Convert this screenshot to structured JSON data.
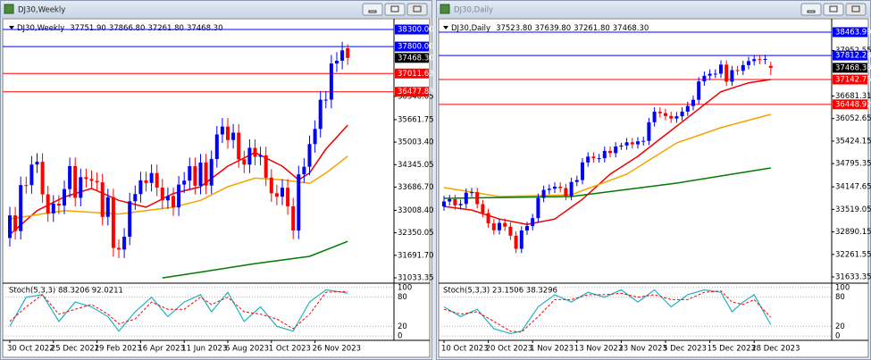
{
  "chart_data": [
    {
      "type": "candlestick",
      "window_title": "DJ30,Weekly",
      "title": "DJ30,Weekly",
      "header_values": [
        {
          "value": 37751.9,
          "label": "37751.90"
        },
        {
          "value": 37866.8,
          "label": "37866.80"
        },
        {
          "value": 37261.8,
          "label": "37261.80"
        },
        {
          "value": 37468.3,
          "label": "37468.30"
        }
      ],
      "categories": [
        "30 Oct 2022",
        null,
        null,
        null,
        null,
        null,
        null,
        null,
        "25 Dec 2022",
        null,
        null,
        null,
        null,
        null,
        null,
        null,
        "19 Feb 2023",
        null,
        null,
        null,
        null,
        null,
        null,
        null,
        "16 Apr 2023",
        null,
        null,
        null,
        null,
        null,
        null,
        null,
        "11 Jun 2023",
        null,
        null,
        null,
        null,
        null,
        null,
        null,
        "6 Aug 2023",
        null,
        null,
        null,
        null,
        null,
        null,
        null,
        "1 Oct 2023",
        null,
        null,
        null,
        null,
        null,
        null,
        null,
        "26 Nov 2023",
        null,
        null,
        null,
        null,
        null,
        null
      ],
      "candles": {
        "up_color": "#0000ff",
        "down_color": "#ff0000",
        "open": [
          32200,
          32861,
          32403,
          33747,
          33746,
          34347,
          34430,
          33476,
          32920,
          33203,
          33147,
          33630,
          34302,
          33375,
          33978,
          33926,
          33869,
          33827,
          32817,
          33391,
          31909,
          31862,
          32238,
          33274,
          33485,
          33886,
          33809,
          34098,
          33674,
          33300,
          33427,
          33093,
          33762,
          33877,
          34299,
          33727,
          34407,
          33734,
          34509,
          35228,
          35459,
          35065,
          35281,
          34500,
          34346,
          34837,
          34576,
          34618,
          33964,
          33507,
          33407,
          33670,
          33127,
          32418,
          34061,
          34283,
          34947,
          35390,
          36245,
          36247,
          37305,
          37385,
          37751.9
        ],
        "high": [
          33111,
          33111,
          33997,
          33996,
          34597,
          34680,
          34680,
          33726,
          33453,
          33453,
          33880,
          34552,
          34552,
          34228,
          34228,
          34176,
          34119,
          34077,
          33641,
          33641,
          32159,
          32488,
          33524,
          33735,
          34136,
          34136,
          34348,
          34348,
          33924,
          33677,
          33677,
          34012,
          34127,
          34549,
          34549,
          34657,
          34657,
          34759,
          35478,
          35709,
          35709,
          35531,
          35531,
          34750,
          35087,
          35087,
          34868,
          34868,
          34214,
          33757,
          33920,
          33920,
          33377,
          34311,
          34533,
          35197,
          35640,
          36495,
          36497,
          37555,
          37635,
          37939,
          37866.8
        ],
        "low": [
          31950,
          32153,
          32153,
          33496,
          33496,
          34097,
          33226,
          32670,
          32670,
          32897,
          32897,
          33380,
          33125,
          33125,
          33676,
          33619,
          33577,
          32567,
          32567,
          31659,
          31612,
          31612,
          31988,
          33024,
          33235,
          33559,
          33559,
          33424,
          33050,
          33050,
          32843,
          32843,
          33512,
          33627,
          33477,
          33477,
          33484,
          33484,
          34259,
          34978,
          34815,
          34815,
          34250,
          34096,
          34096,
          34326,
          34326,
          33714,
          33257,
          33157,
          33157,
          32877,
          32168,
          32168,
          33811,
          34033,
          34697,
          35140,
          35995,
          35997,
          37055,
          37135,
          37261.8
        ],
        "close": [
          32861,
          32403,
          33747,
          33746,
          34347,
          34430,
          33476,
          32920,
          33203,
          33147,
          33630,
          34302,
          33375,
          33978,
          33926,
          33869,
          33827,
          32817,
          33391,
          31909,
          31862,
          32238,
          33274,
          33485,
          33886,
          33809,
          34098,
          33674,
          33300,
          33427,
          33093,
          33762,
          33877,
          34299,
          33727,
          34407,
          33734,
          34509,
          35228,
          35459,
          35065,
          35281,
          34500,
          34346,
          34837,
          34576,
          34618,
          33964,
          33507,
          33407,
          33670,
          33127,
          32418,
          34061,
          34283,
          34947,
          35390,
          36245,
          36247,
          37305,
          37385,
          37689,
          37468.3
        ]
      },
      "ma": [
        {
          "color": "#ee0000",
          "x": [
            0,
            5,
            10,
            15,
            20,
            25,
            30,
            35,
            40,
            45,
            50,
            53,
            55,
            58,
            62
          ],
          "values": [
            32300,
            33000,
            33400,
            33650,
            33300,
            33100,
            33500,
            33700,
            34300,
            34700,
            34300,
            33900,
            34100,
            34800,
            35500
          ]
        },
        {
          "color": "#f5a300",
          "x": [
            0,
            10,
            20,
            30,
            35,
            40,
            45,
            50,
            55,
            58,
            62
          ],
          "values": [
            32760,
            33000,
            32900,
            33100,
            33300,
            33700,
            33950,
            33900,
            33800,
            34100,
            34590
          ]
        },
        {
          "color": "#007a00",
          "x": [
            28,
            35,
            45,
            55,
            62
          ],
          "values": [
            31030,
            31200,
            31450,
            31660,
            32100
          ]
        }
      ],
      "levels": [
        {
          "value": 38300,
          "label": "38300.00",
          "color": "#0000ff"
        },
        {
          "value": 37800,
          "label": "37800.00",
          "color": "#0000ff"
        },
        {
          "value": 37011.63,
          "label": "37011.63",
          "color": "#ff0000"
        },
        {
          "value": 36477.83,
          "label": "36477.83",
          "color": "#ff0000"
        }
      ],
      "last_price": {
        "value": 37468.3,
        "label": "37468.30"
      },
      "ylim": [
        30903,
        38535
      ],
      "yticks": [
        36340.05,
        35661.75,
        {
          "value": 35003.4,
          "label": "35003.40"
        },
        34345.05,
        {
          "value": 33686.7,
          "label": "33686.70"
        },
        {
          "value": 33008.4,
          "label": "33008.40"
        },
        32350.05,
        {
          "value": 31691.7,
          "label": "31691.70"
        },
        31033.35
      ],
      "stoch": {
        "label": "Stoch(5,3,3) 88.3206 92.0211",
        "ylim": [
          -9,
          107
        ],
        "yticks": [
          100,
          80,
          20,
          0
        ],
        "main": {
          "color": "#20b2c0",
          "x": [
            0,
            3,
            6,
            9,
            12,
            15,
            18,
            20,
            23,
            26,
            29,
            32,
            35,
            37,
            40,
            43,
            46,
            49,
            52,
            55,
            58,
            62
          ],
          "values": [
            20,
            80,
            85,
            30,
            70,
            60,
            40,
            10,
            50,
            80,
            40,
            70,
            85,
            50,
            90,
            30,
            60,
            20,
            10,
            70,
            95,
            88.3206
          ]
        },
        "signal": {
          "color": "#ff0000",
          "x": [
            0,
            3,
            6,
            9,
            12,
            15,
            18,
            20,
            23,
            26,
            29,
            32,
            35,
            37,
            40,
            43,
            46,
            49,
            52,
            55,
            58,
            62
          ],
          "values": [
            30,
            60,
            85,
            45,
            55,
            65,
            45,
            25,
            35,
            70,
            55,
            55,
            80,
            65,
            80,
            50,
            45,
            35,
            15,
            45,
            90,
            92.0211
          ]
        }
      }
    },
    {
      "type": "candlestick",
      "window_title": "DJ30,Daily",
      "title": "DJ30,Daily",
      "header_values": [
        {
          "value": 37523.8,
          "label": "37523.80"
        },
        {
          "value": 37639.8,
          "label": "37639.80"
        },
        {
          "value": 37261.8,
          "label": "37261.80"
        },
        {
          "value": 37468.3,
          "label": "37468.30"
        }
      ],
      "categories": [
        "10 Oct 2023",
        null,
        null,
        null,
        null,
        null,
        null,
        null,
        "20 Oct 2023",
        null,
        null,
        null,
        null,
        null,
        null,
        null,
        "1 Nov 2023",
        null,
        null,
        null,
        null,
        null,
        null,
        null,
        "13 Nov 2023",
        null,
        null,
        null,
        null,
        null,
        null,
        null,
        "23 Nov 2023",
        null,
        null,
        null,
        null,
        null,
        null,
        null,
        "5 Dec 2023",
        null,
        null,
        null,
        null,
        null,
        null,
        null,
        "15 Dec 2023",
        null,
        null,
        null,
        null,
        null,
        null,
        null,
        "28 Dec 2023",
        null,
        null,
        null
      ],
      "candles": {
        "up_color": "#0000ff",
        "down_color": "#ff0000",
        "open": [
          33600,
          33739,
          33804,
          33631,
          33670,
          33985,
          33998,
          33665,
          33415,
          33127,
          32936,
          33141,
          33036,
          32785,
          32418,
          32929,
          33053,
          33275,
          33839,
          34061,
          34096,
          34153,
          34112,
          33892,
          34283,
          34337,
          34828,
          34991,
          34946,
          34947,
          35151,
          35088,
          35273,
          35300,
          35390,
          35333,
          35416,
          35430,
          35950,
          36245,
          36204,
          36125,
          36054,
          36117,
          36247,
          36404,
          36577,
          37090,
          37248,
          37305,
          37306,
          37558,
          37082,
          37404,
          37385,
          37545,
          37656,
          37710,
          37690,
          37523.8
        ],
        "high": [
          33900,
          33924,
          33924,
          33790,
          34105,
          34118,
          34118,
          33785,
          33535,
          33247,
          33261,
          33261,
          33156,
          32905,
          33049,
          33173,
          33395,
          33959,
          34181,
          34216,
          34273,
          34273,
          34232,
          34403,
          34457,
          34948,
          35111,
          35111,
          35067,
          35271,
          35271,
          35393,
          35380,
          35510,
          35510,
          35536,
          35550,
          36070,
          36365,
          36365,
          36324,
          36245,
          36237,
          36367,
          36524,
          36697,
          37210,
          37368,
          37425,
          37426,
          37678,
          37678,
          37524,
          37524,
          37665,
          37776,
          37830,
          37830,
          37835,
          37639.8
        ],
        "low": [
          33480,
          33619,
          33511,
          33511,
          33550,
          33865,
          33545,
          33295,
          33007,
          32816,
          32816,
          32916,
          32665,
          32298,
          32298,
          32809,
          32933,
          33155,
          33719,
          33941,
          33976,
          33992,
          33772,
          33772,
          34163,
          34217,
          34708,
          34826,
          34826,
          34827,
          34968,
          34968,
          35180,
          35180,
          35213,
          35213,
          35296,
          35310,
          35830,
          36084,
          36005,
          35934,
          35934,
          35997,
          36127,
          36284,
          36457,
          36970,
          37128,
          37185,
          37186,
          36962,
          36962,
          37265,
          37265,
          37425,
          37536,
          37570,
          37570,
          37261.8
        ],
        "close": [
          33739,
          33804,
          33631,
          33670,
          33985,
          33998,
          33665,
          33415,
          33127,
          32936,
          33141,
          33036,
          32785,
          32418,
          32929,
          33053,
          33275,
          33839,
          34061,
          34096,
          34153,
          34112,
          33892,
          34283,
          34337,
          34828,
          34991,
          34946,
          34947,
          35151,
          35088,
          35273,
          35300,
          35390,
          35333,
          35416,
          35430,
          35950,
          36245,
          36204,
          36125,
          36054,
          36117,
          36247,
          36404,
          36577,
          37090,
          37248,
          37305,
          37306,
          37558,
          37082,
          37404,
          37385,
          37545,
          37656,
          37710,
          37690,
          37715,
          37468.3
        ]
      },
      "ma": [
        {
          "color": "#ee0000",
          "x": [
            0,
            5,
            10,
            15,
            20,
            25,
            30,
            35,
            40,
            45,
            50,
            55,
            59
          ],
          "values": [
            33600,
            33500,
            33250,
            33100,
            33250,
            33800,
            34500,
            35000,
            35600,
            36200,
            36800,
            37050,
            37142.75
          ]
        },
        {
          "color": "#f5a300",
          "x": [
            0,
            10,
            23,
            33,
            42,
            50,
            59
          ],
          "values": [
            34126,
            33877,
            33926,
            34500,
            35372,
            35800,
            36170
          ]
        },
        {
          "color": "#007a00",
          "x": [
            0,
            23,
            42,
            59
          ],
          "values": [
            33827,
            33877,
            34250,
            34674
          ]
        }
      ],
      "levels": [
        {
          "value": 38463.99,
          "label": "38463.99",
          "color": "#0000ff"
        },
        {
          "value": 37812.28,
          "label": "37812.28",
          "color": "#0000ff"
        },
        {
          "value": 37142.75,
          "label": "37142.75",
          "color": "#ff0000"
        },
        {
          "value": 36448.92,
          "label": "36448.92",
          "color": "#ff0000"
        }
      ],
      "last_price": {
        "value": 37468.3,
        "label": "37468.30"
      },
      "ylim": [
        31484,
        38763
      ],
      "yticks": [
        37952.55,
        36681.31,
        36052.65,
        35424.15,
        34795.35,
        34147.65,
        33519.05,
        32890.15,
        32261.55,
        31633.35
      ],
      "stoch": {
        "label": "Stoch(5,3,3) 23.1506 38.3296",
        "ylim": [
          -9,
          107
        ],
        "yticks": [
          100,
          80,
          20,
          0
        ],
        "main": {
          "color": "#20b2c0",
          "x": [
            0,
            3,
            6,
            9,
            12,
            14,
            17,
            20,
            23,
            26,
            29,
            32,
            35,
            38,
            41,
            44,
            47,
            50,
            52,
            54,
            56,
            59
          ],
          "values": [
            60,
            40,
            55,
            15,
            5,
            10,
            60,
            85,
            70,
            90,
            80,
            95,
            70,
            95,
            60,
            85,
            95,
            90,
            50,
            70,
            85,
            23.1506
          ]
        },
        "signal": {
          "color": "#ff0000",
          "x": [
            0,
            3,
            6,
            9,
            12,
            14,
            17,
            20,
            23,
            26,
            29,
            32,
            35,
            38,
            41,
            44,
            47,
            50,
            52,
            54,
            56,
            59
          ],
          "values": [
            55,
            45,
            50,
            30,
            10,
            8,
            40,
            75,
            75,
            85,
            85,
            88,
            80,
            85,
            75,
            75,
            90,
            93,
            70,
            65,
            75,
            38.3296
          ]
        }
      }
    }
  ]
}
